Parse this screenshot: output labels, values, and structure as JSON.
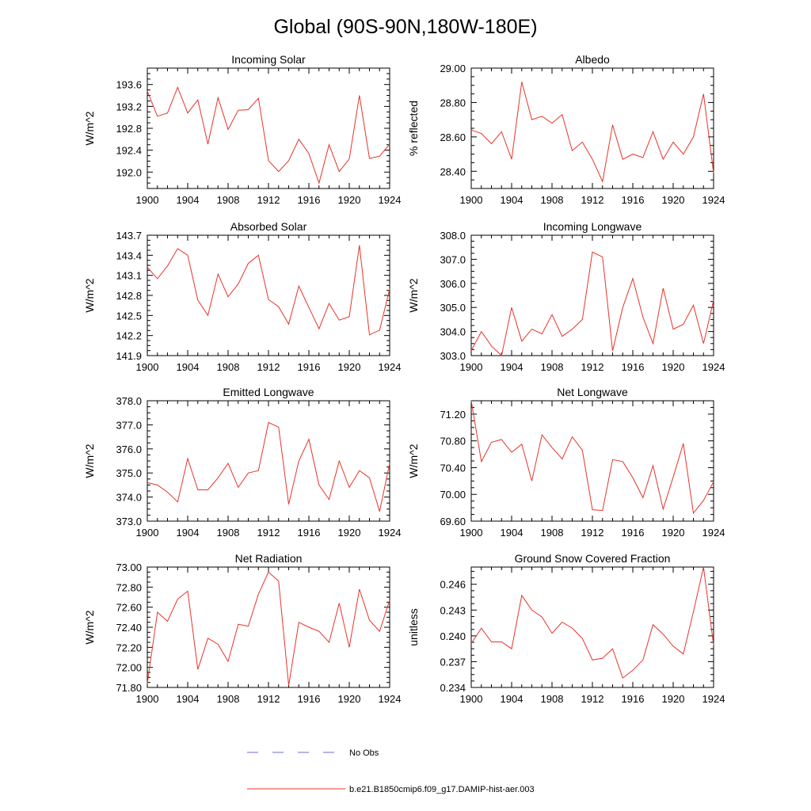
{
  "title": "Global (90S-90N,180W-180E)",
  "legend": {
    "obs_label": "No Obs",
    "model_label": "b.e21.B1850cmip6.f09_g17.DAMIP-hist-aer.003",
    "obs_color": "#6b6bd6",
    "model_color": "#e8332a"
  },
  "chart_data": [
    {
      "type": "line",
      "title": "Incoming Solar",
      "ylabel": "W/m^2",
      "xlim": [
        1900,
        1924
      ],
      "ylim": [
        191.7,
        193.9
      ],
      "yticks": [
        192.0,
        192.4,
        192.8,
        193.2,
        193.6
      ],
      "ytick_decimals": 1,
      "xticks": [
        1900,
        1904,
        1908,
        1912,
        1916,
        1920,
        1924
      ],
      "x": [
        1900,
        1901,
        1902,
        1903,
        1904,
        1905,
        1906,
        1907,
        1908,
        1909,
        1910,
        1911,
        1912,
        1913,
        1914,
        1915,
        1916,
        1917,
        1918,
        1919,
        1920,
        1921,
        1922,
        1923,
        1924
      ],
      "y": [
        193.48,
        193.02,
        193.08,
        193.55,
        193.08,
        193.32,
        192.51,
        193.36,
        192.78,
        193.13,
        193.14,
        193.35,
        192.21,
        192.01,
        192.21,
        192.6,
        192.34,
        191.8,
        192.5,
        192.01,
        192.24,
        193.4,
        192.25,
        192.29,
        192.51
      ]
    },
    {
      "type": "line",
      "title": "Albedo",
      "ylabel": "% reflected",
      "xlim": [
        1900,
        1924
      ],
      "ylim": [
        28.3,
        29.0
      ],
      "yticks": [
        28.4,
        28.6,
        28.8,
        29.0
      ],
      "ytick_decimals": 2,
      "xticks": [
        1900,
        1904,
        1908,
        1912,
        1916,
        1920,
        1924
      ],
      "x": [
        1900,
        1901,
        1902,
        1903,
        1904,
        1905,
        1906,
        1907,
        1908,
        1909,
        1910,
        1911,
        1912,
        1913,
        1914,
        1915,
        1916,
        1917,
        1918,
        1919,
        1920,
        1921,
        1922,
        1923,
        1924
      ],
      "y": [
        28.64,
        28.62,
        28.56,
        28.63,
        28.47,
        28.92,
        28.7,
        28.72,
        28.68,
        28.73,
        28.52,
        28.57,
        28.47,
        28.34,
        28.67,
        28.47,
        28.5,
        28.48,
        28.63,
        28.47,
        28.57,
        28.5,
        28.6,
        28.85,
        28.39
      ]
    },
    {
      "type": "line",
      "title": "Absorbed Solar",
      "ylabel": "W/m^2",
      "xlim": [
        1900,
        1924
      ],
      "ylim": [
        141.9,
        143.7
      ],
      "yticks": [
        141.9,
        142.2,
        142.5,
        142.8,
        143.1,
        143.4,
        143.7
      ],
      "ytick_decimals": 1,
      "xticks": [
        1900,
        1904,
        1908,
        1912,
        1916,
        1920,
        1924
      ],
      "x": [
        1900,
        1901,
        1902,
        1903,
        1904,
        1905,
        1906,
        1907,
        1908,
        1909,
        1910,
        1911,
        1912,
        1913,
        1914,
        1915,
        1916,
        1917,
        1918,
        1919,
        1920,
        1921,
        1922,
        1923,
        1924
      ],
      "y": [
        143.22,
        143.05,
        143.24,
        143.5,
        143.4,
        142.73,
        142.5,
        143.12,
        142.78,
        142.97,
        143.28,
        143.4,
        142.74,
        142.63,
        142.37,
        142.94,
        142.62,
        142.3,
        142.68,
        142.43,
        142.48,
        143.55,
        142.21,
        142.28,
        142.9
      ]
    },
    {
      "type": "line",
      "title": "Incoming Longwave",
      "ylabel": "W/m^2",
      "xlim": [
        1900,
        1924
      ],
      "ylim": [
        303.0,
        308.0
      ],
      "yticks": [
        303.0,
        304.0,
        305.0,
        306.0,
        307.0,
        308.0
      ],
      "ytick_decimals": 1,
      "xticks": [
        1900,
        1904,
        1908,
        1912,
        1916,
        1920,
        1924
      ],
      "x": [
        1900,
        1901,
        1902,
        1903,
        1904,
        1905,
        1906,
        1907,
        1908,
        1909,
        1910,
        1911,
        1912,
        1913,
        1914,
        1915,
        1916,
        1917,
        1918,
        1919,
        1920,
        1921,
        1922,
        1923,
        1924
      ],
      "y": [
        303.2,
        304.0,
        303.4,
        303.0,
        305.0,
        303.6,
        304.1,
        303.9,
        304.7,
        303.8,
        304.1,
        304.5,
        307.3,
        307.1,
        303.2,
        305.0,
        306.2,
        304.6,
        303.5,
        305.8,
        304.1,
        304.3,
        305.1,
        303.5,
        305.3
      ]
    },
    {
      "type": "line",
      "title": "Emitted Longwave",
      "ylabel": "W/m^2",
      "xlim": [
        1900,
        1924
      ],
      "ylim": [
        373.0,
        378.0
      ],
      "yticks": [
        373.0,
        374.0,
        375.0,
        376.0,
        377.0,
        378.0
      ],
      "ytick_decimals": 1,
      "xticks": [
        1900,
        1904,
        1908,
        1912,
        1916,
        1920,
        1924
      ],
      "x": [
        1900,
        1901,
        1902,
        1903,
        1904,
        1905,
        1906,
        1907,
        1908,
        1909,
        1910,
        1911,
        1912,
        1913,
        1914,
        1915,
        1916,
        1917,
        1918,
        1919,
        1920,
        1921,
        1922,
        1923,
        1924
      ],
      "y": [
        374.6,
        374.5,
        374.2,
        373.8,
        375.6,
        374.3,
        374.3,
        374.8,
        375.4,
        374.4,
        375.0,
        375.1,
        377.1,
        376.9,
        373.7,
        375.5,
        376.4,
        374.5,
        373.9,
        375.5,
        374.4,
        375.1,
        374.8,
        373.4,
        375.4
      ]
    },
    {
      "type": "line",
      "title": "Net Longwave",
      "ylabel": "W/m^2",
      "xlim": [
        1900,
        1924
      ],
      "ylim": [
        69.6,
        71.4
      ],
      "yticks": [
        69.6,
        70.0,
        70.4,
        70.8,
        71.2
      ],
      "ytick_decimals": 2,
      "xticks": [
        1900,
        1904,
        1908,
        1912,
        1916,
        1920,
        1924
      ],
      "x": [
        1900,
        1901,
        1902,
        1903,
        1904,
        1905,
        1906,
        1907,
        1908,
        1909,
        1910,
        1911,
        1912,
        1913,
        1914,
        1915,
        1916,
        1917,
        1918,
        1919,
        1920,
        1921,
        1922,
        1923,
        1924
      ],
      "y": [
        71.4,
        70.49,
        70.78,
        70.82,
        70.63,
        70.75,
        70.2,
        70.89,
        70.7,
        70.53,
        70.86,
        70.66,
        69.77,
        69.76,
        70.52,
        70.49,
        70.25,
        69.95,
        70.43,
        69.78,
        70.26,
        70.76,
        69.72,
        69.91,
        70.19
      ]
    },
    {
      "type": "line",
      "title": "Net Radiation",
      "ylabel": "W/m^2",
      "xlim": [
        1900,
        1924
      ],
      "ylim": [
        71.8,
        73.0
      ],
      "yticks": [
        71.8,
        72.0,
        72.2,
        72.4,
        72.6,
        72.8,
        73.0
      ],
      "ytick_decimals": 2,
      "xticks": [
        1900,
        1904,
        1908,
        1912,
        1916,
        1920,
        1924
      ],
      "x": [
        1900,
        1901,
        1902,
        1903,
        1904,
        1905,
        1906,
        1907,
        1908,
        1909,
        1910,
        1911,
        1912,
        1913,
        1914,
        1915,
        1916,
        1917,
        1918,
        1919,
        1920,
        1921,
        1922,
        1923,
        1924
      ],
      "y": [
        71.84,
        72.55,
        72.46,
        72.68,
        72.76,
        71.98,
        72.29,
        72.23,
        72.06,
        72.43,
        72.41,
        72.73,
        72.95,
        72.86,
        71.82,
        72.45,
        72.4,
        72.36,
        72.25,
        72.64,
        72.2,
        72.78,
        72.47,
        72.36,
        72.67
      ]
    },
    {
      "type": "line",
      "title": "Ground Snow Covered Fraction",
      "ylabel": "unitless",
      "xlim": [
        1900,
        1924
      ],
      "ylim": [
        0.234,
        0.248
      ],
      "yticks": [
        0.234,
        0.237,
        0.24,
        0.243,
        0.246
      ],
      "ytick_decimals": 3,
      "xticks": [
        1900,
        1904,
        1908,
        1912,
        1916,
        1920,
        1924
      ],
      "x": [
        1900,
        1901,
        1902,
        1903,
        1904,
        1905,
        1906,
        1907,
        1908,
        1909,
        1910,
        1911,
        1912,
        1913,
        1914,
        1915,
        1916,
        1917,
        1918,
        1919,
        1920,
        1921,
        1922,
        1923,
        1924
      ],
      "y": [
        0.2391,
        0.2409,
        0.2393,
        0.2393,
        0.2385,
        0.2447,
        0.243,
        0.2422,
        0.2403,
        0.2416,
        0.2409,
        0.2397,
        0.2372,
        0.2374,
        0.2385,
        0.2351,
        0.236,
        0.2372,
        0.2413,
        0.2402,
        0.2388,
        0.2379,
        0.2428,
        0.248,
        0.2389
      ]
    }
  ]
}
